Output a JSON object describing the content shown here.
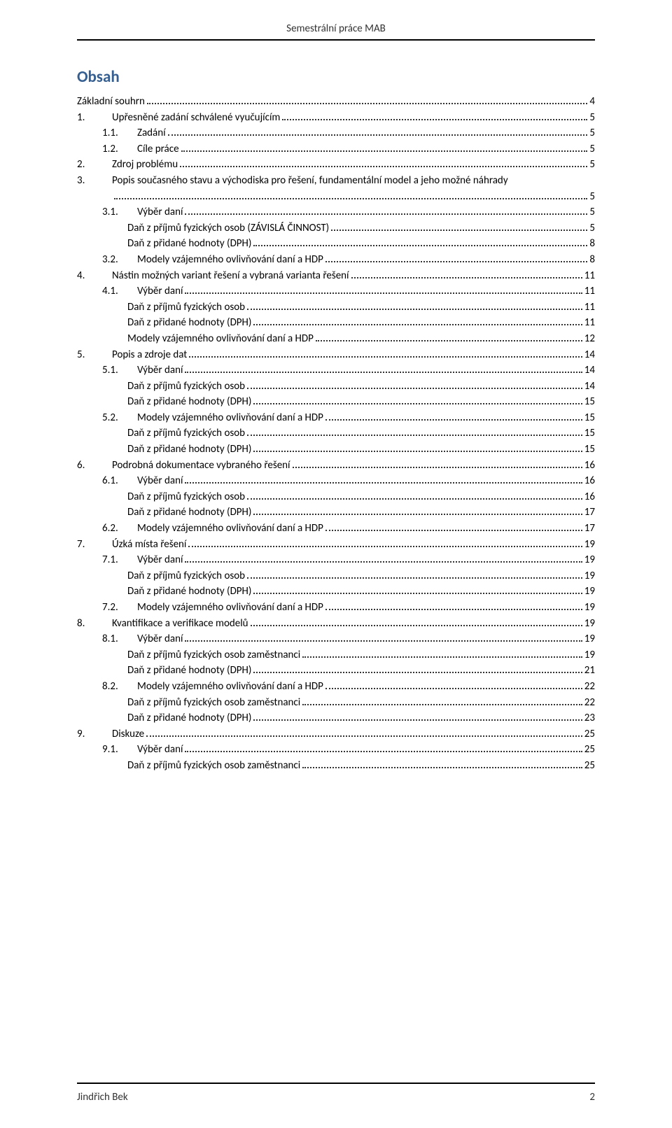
{
  "header": {
    "title": "Semestrální práce MAB"
  },
  "obsah": {
    "title": "Obsah"
  },
  "toc": [
    {
      "level": 0,
      "num": "",
      "label": "Základní souhrn",
      "page": "4"
    },
    {
      "level": 1,
      "num": "1.",
      "label": "Upřesněné zadání schválené vyučujícím",
      "page": "5"
    },
    {
      "level": 2,
      "num": "1.1.",
      "label": "Zadání",
      "page": "5"
    },
    {
      "level": 2,
      "num": "1.2.",
      "label": "Cíle práce",
      "page": "5"
    },
    {
      "level": 1,
      "num": "2.",
      "label": "Zdroj problému",
      "page": "5"
    },
    {
      "level": 1,
      "num": "3.",
      "label": "Popis současného stavu a východiska pro řešení, fundamentální model a jeho možné  náhrady",
      "page": "5"
    },
    {
      "level": 2,
      "num": "3.1.",
      "label": "Výběr daní",
      "page": "5"
    },
    {
      "level": 3,
      "num": "",
      "label": "Daň z příjmů fyzických osob (ZÁVISLÁ ČINNOST)",
      "page": "5"
    },
    {
      "level": 3,
      "num": "",
      "label": "Daň z přidané hodnoty (DPH)",
      "page": "8"
    },
    {
      "level": 2,
      "num": "3.2.",
      "label": "Modely vzájemného ovlivňování daní a HDP",
      "page": "8"
    },
    {
      "level": 1,
      "num": "4.",
      "label": "Nástin možných variant řešení a vybraná varianta řešení",
      "page": "11"
    },
    {
      "level": 2,
      "num": "4.1.",
      "label": "Výběr daní",
      "page": "11"
    },
    {
      "level": 3,
      "num": "",
      "label": "Daň z příjmů fyzických osob",
      "page": "11"
    },
    {
      "level": 3,
      "num": "",
      "label": "Daň z přidané hodnoty (DPH)",
      "page": "11"
    },
    {
      "level": 3,
      "num": "",
      "label": "Modely vzájemného ovlivňování daní a HDP",
      "page": "12"
    },
    {
      "level": 1,
      "num": "5.",
      "label": "Popis a zdroje dat",
      "page": "14"
    },
    {
      "level": 2,
      "num": "5.1.",
      "label": "Výběr daní",
      "page": "14"
    },
    {
      "level": 3,
      "num": "",
      "label": "Daň z příjmů fyzických osob",
      "page": "14"
    },
    {
      "level": 3,
      "num": "",
      "label": "Daň z přidané hodnoty (DPH)",
      "page": "15"
    },
    {
      "level": 2,
      "num": "5.2.",
      "label": "Modely vzájemného ovlivňování daní a HDP",
      "page": "15"
    },
    {
      "level": 3,
      "num": "",
      "label": "Daň z příjmů fyzických osob",
      "page": "15"
    },
    {
      "level": 3,
      "num": "",
      "label": "Daň z přidané hodnoty (DPH)",
      "page": "15"
    },
    {
      "level": 1,
      "num": "6.",
      "label": "Podrobná dokumentace vybraného řešení",
      "page": "16"
    },
    {
      "level": 2,
      "num": "6.1.",
      "label": "Výběr daní",
      "page": "16"
    },
    {
      "level": 3,
      "num": "",
      "label": "Daň z příjmů fyzických osob",
      "page": "16"
    },
    {
      "level": 3,
      "num": "",
      "label": "Daň z přidané hodnoty (DPH)",
      "page": "17"
    },
    {
      "level": 2,
      "num": "6.2.",
      "label": "Modely vzájemného ovlivňování daní a HDP",
      "page": "17"
    },
    {
      "level": 1,
      "num": "7.",
      "label": "Úzká místa řešení",
      "page": "19"
    },
    {
      "level": 2,
      "num": "7.1.",
      "label": "Výběr daní",
      "page": "19"
    },
    {
      "level": 3,
      "num": "",
      "label": "Daň z příjmů fyzických osob",
      "page": "19"
    },
    {
      "level": 3,
      "num": "",
      "label": "Daň z přidané hodnoty (DPH)",
      "page": "19"
    },
    {
      "level": 2,
      "num": "7.2.",
      "label": "Modely vzájemného ovlivňování daní a HDP",
      "page": "19"
    },
    {
      "level": 1,
      "num": "8.",
      "label": "Kvantifikace a verifikace modelů",
      "page": "19"
    },
    {
      "level": 2,
      "num": "8.1.",
      "label": "Výběr daní",
      "page": "19"
    },
    {
      "level": 3,
      "num": "",
      "label": "Daň z příjmů fyzických osob zaměstnanci",
      "page": "19"
    },
    {
      "level": 3,
      "num": "",
      "label": "Daň z přidané hodnoty (DPH)",
      "page": "21"
    },
    {
      "level": 2,
      "num": "8.2.",
      "label": "Modely vzájemného ovlivňování daní a HDP",
      "page": "22"
    },
    {
      "level": 3,
      "num": "",
      "label": "Daň z příjmů fyzických osob zaměstnanci",
      "page": "22"
    },
    {
      "level": 3,
      "num": "",
      "label": "Daň z přidané hodnoty (DPH)",
      "page": "23"
    },
    {
      "level": 1,
      "num": "9.",
      "label": "Diskuze",
      "page": "25"
    },
    {
      "level": 2,
      "num": "9.1.",
      "label": "Výběr daní",
      "page": "25"
    },
    {
      "level": 3,
      "num": "",
      "label": "Daň z příjmů fyzických osob zaměstnanci",
      "page": "25"
    }
  ],
  "footer": {
    "author": "Jindřich Bek",
    "page": "2"
  }
}
